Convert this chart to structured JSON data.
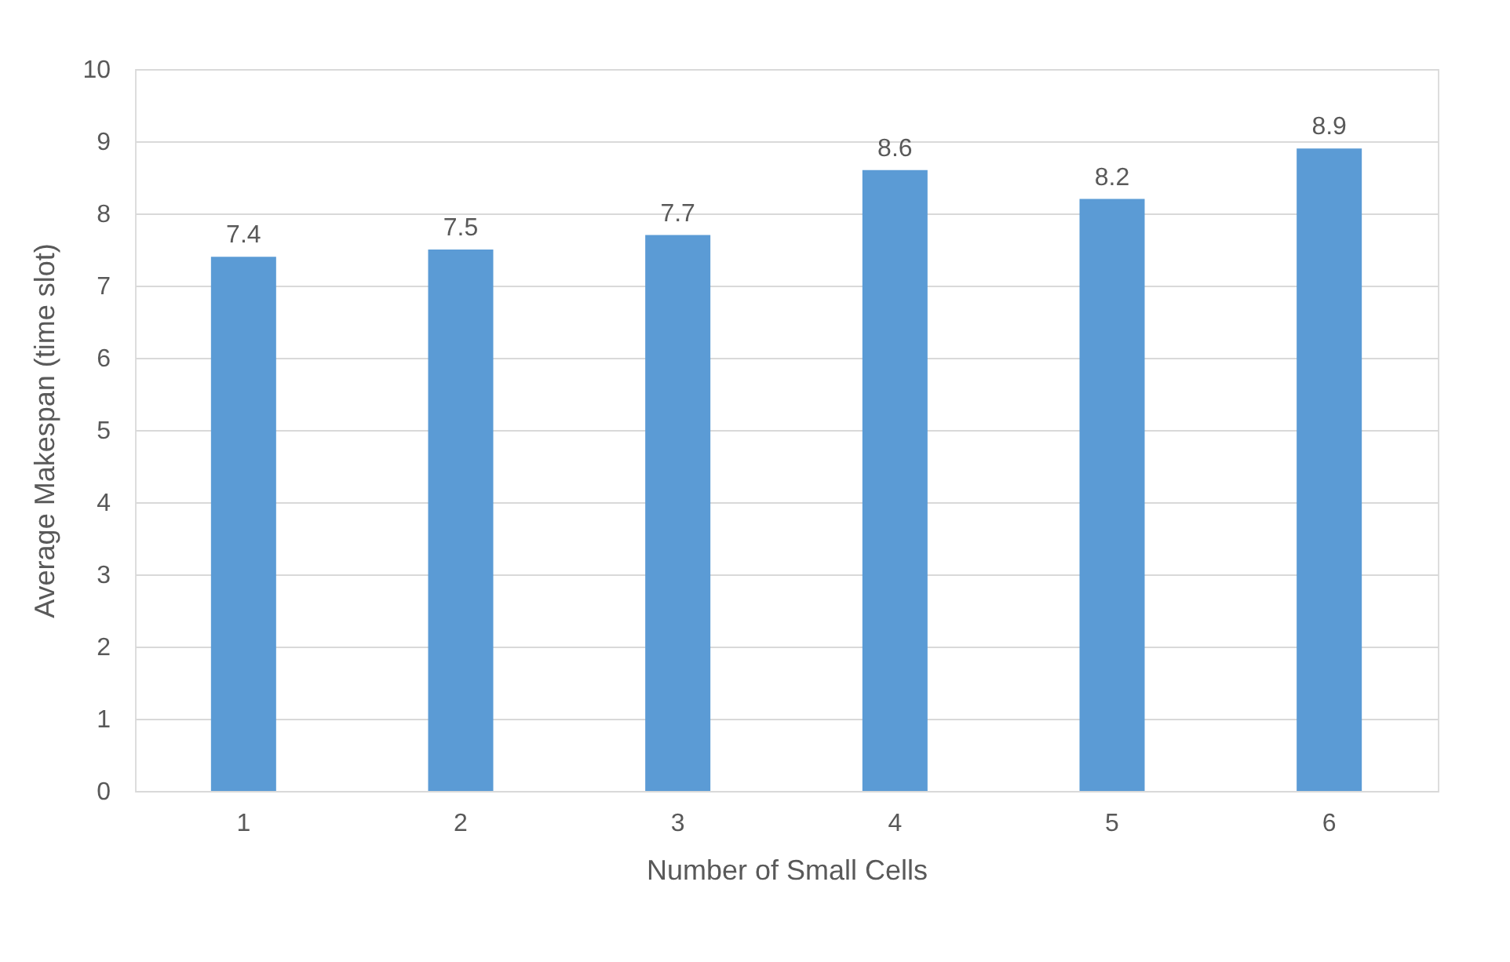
{
  "chart_data": {
    "type": "bar",
    "xlabel": "Number of Small Cells",
    "ylabel": "Average Makespan (time slot)",
    "categories": [
      "1",
      "2",
      "3",
      "4",
      "5",
      "6"
    ],
    "values": [
      7.4,
      7.5,
      7.7,
      8.6,
      8.2,
      8.9
    ],
    "color": "#5b9bd5",
    "ylim": [
      0,
      10
    ],
    "yticks": [
      0,
      1,
      2,
      3,
      4,
      5,
      6,
      7,
      8,
      9,
      10
    ],
    "grid": "y",
    "data_labels": true
  }
}
